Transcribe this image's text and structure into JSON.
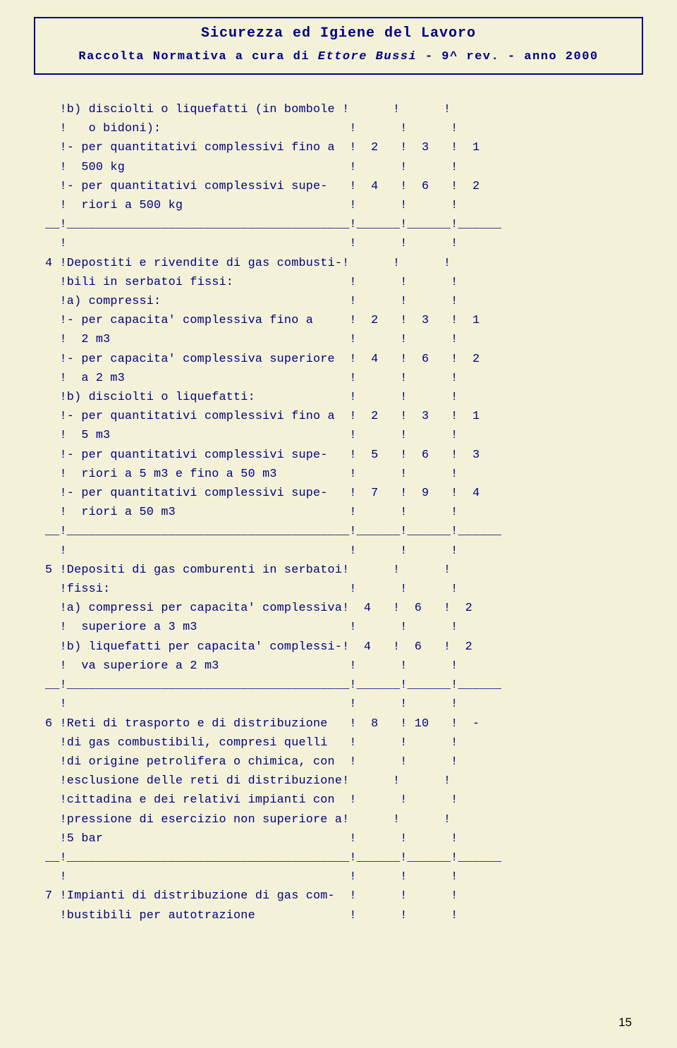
{
  "header": {
    "title": "Sicurezza ed Igiene del Lavoro",
    "sub_prefix": "Raccolta Normativa a cura di ",
    "sub_italic": "Ettore Bussi",
    "sub_suffix": " - 9^ rev. - anno 2000"
  },
  "page_number": "15",
  "lines": [
    "  !b) disciolti o liquefatti (in bombole !      !      !",
    "  !   o bidoni):                          !      !      !",
    "  !- per quantitativi complessivi fino a  !  2   !  3   !  1",
    "  !  500 kg                               !      !      !",
    "  !- per quantitativi complessivi supe-   !  4   !  6   !  2",
    "  !  riori a 500 kg                       !      !      !",
    "__!_______________________________________!______!______!______",
    "  !                                       !      !      !",
    "4 !Depostiti e rivendite di gas combusti-!      !      !",
    "  !bili in serbatoi fissi:                !      !      !",
    "  !a) compressi:                          !      !      !",
    "  !- per capacita' complessiva fino a     !  2   !  3   !  1",
    "  !  2 m3                                 !      !      !",
    "  !- per capacita' complessiva superiore  !  4   !  6   !  2",
    "  !  a 2 m3                               !      !      !",
    "  !b) disciolti o liquefatti:             !      !      !",
    "  !- per quantitativi complessivi fino a  !  2   !  3   !  1",
    "  !  5 m3                                 !      !      !",
    "  !- per quantitativi complessivi supe-   !  5   !  6   !  3",
    "  !  riori a 5 m3 e fino a 50 m3          !      !      !",
    "  !- per quantitativi complessivi supe-   !  7   !  9   !  4",
    "  !  riori a 50 m3                        !      !      !",
    "__!_______________________________________!______!______!______",
    "  !                                       !      !      !",
    "5 !Depositi di gas comburenti in serbatoi!      !      !",
    "  !fissi:                                 !      !      !",
    "  !a) compressi per capacita' complessiva!  4   !  6   !  2",
    "  !  superiore a 3 m3                     !      !      !",
    "  !b) liquefatti per capacita' complessi-!  4   !  6   !  2",
    "  !  va superiore a 2 m3                  !      !      !",
    "__!_______________________________________!______!______!______",
    "  !                                       !      !      !",
    "6 !Reti di trasporto e di distribuzione   !  8   ! 10   !  -",
    "  !di gas combustibili, compresi quelli   !      !      !",
    "  !di origine petrolifera o chimica, con  !      !      !",
    "  !esclusione delle reti di distribuzione!      !      !",
    "  !cittadina e dei relativi impianti con  !      !      !",
    "  !pressione di esercizio non superiore a!      !      !",
    "  !5 bar                                  !      !      !",
    "__!_______________________________________!______!______!______",
    "  !                                       !      !      !",
    "7 !Impianti di distribuzione di gas com-  !      !      !",
    "  !bustibili per autotrazione             !      !      !"
  ]
}
